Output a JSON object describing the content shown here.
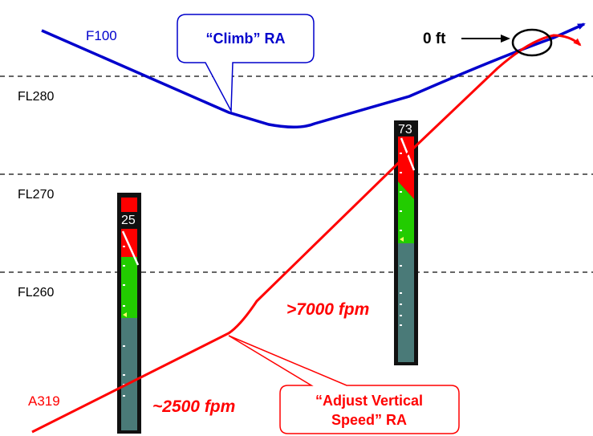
{
  "flight_levels": [
    {
      "label": "FL280"
    },
    {
      "label": "FL270"
    },
    {
      "label": "FL260"
    }
  ],
  "aircraft": {
    "f100": {
      "label": "F100",
      "color": "#0000cc"
    },
    "a319": {
      "label": "A319",
      "color": "#ff0000"
    }
  },
  "callouts": {
    "climb_ra": {
      "text": "“Climb” RA",
      "color": "#0000cc"
    },
    "adjust_ra": {
      "line1": "“Adjust Vertical",
      "line2": "Speed” RA",
      "color": "#ff0000"
    }
  },
  "annotations": {
    "zero_ft": "0 ft",
    "speed_low": "~2500 fpm",
    "speed_high": ">7000 fpm"
  },
  "vsi": {
    "left": {
      "value": "25"
    },
    "right": {
      "value": "73"
    }
  },
  "colors": {
    "vsi_red": "#ff0000",
    "vsi_green": "#22cc00",
    "vsi_grey": "#4a7a78",
    "vsi_frame": "#111111"
  }
}
